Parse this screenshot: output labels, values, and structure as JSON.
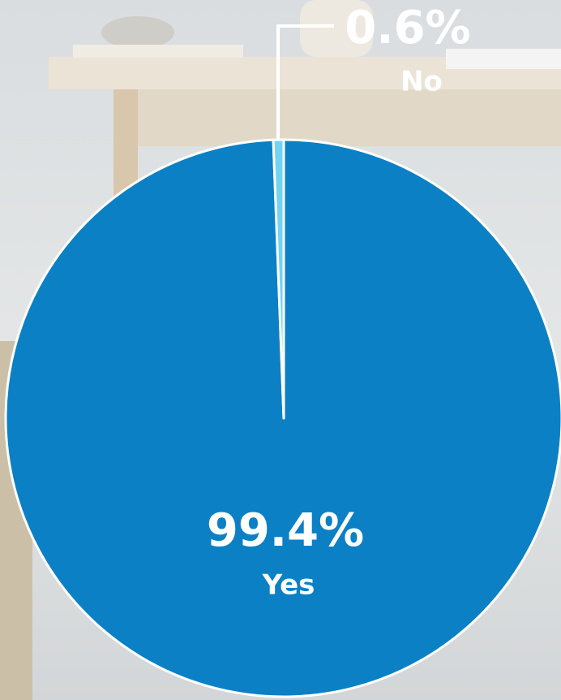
{
  "chart_data": {
    "type": "pie",
    "categories": [
      "Yes",
      "No"
    ],
    "values": [
      99.4,
      0.6
    ],
    "value_labels": [
      "99.4%",
      "0.6%"
    ],
    "colors": [
      "#0b80c5",
      "#72d3f2"
    ]
  }
}
